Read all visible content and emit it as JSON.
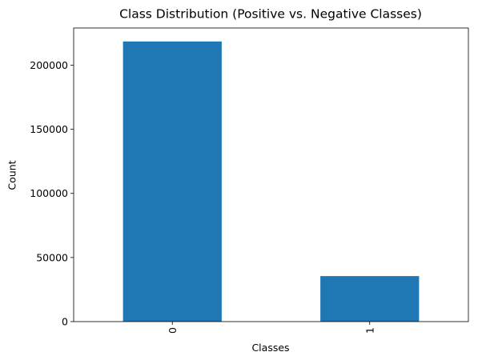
{
  "chart_data": {
    "type": "bar",
    "title": "Class Distribution (Positive vs. Negative Classes)",
    "xlabel": "Classes",
    "ylabel": "Count",
    "categories": [
      "0",
      "1"
    ],
    "values": [
      218500,
      35500
    ],
    "ylim": [
      0,
      229000
    ],
    "yticks": [
      0,
      50000,
      100000,
      150000,
      200000
    ],
    "ytick_labels": [
      "0",
      "50000",
      "100000",
      "150000",
      "200000"
    ],
    "xtick_rotation": "vertical",
    "grid": false,
    "legend": "none",
    "bar_color": "#1f77b4"
  }
}
